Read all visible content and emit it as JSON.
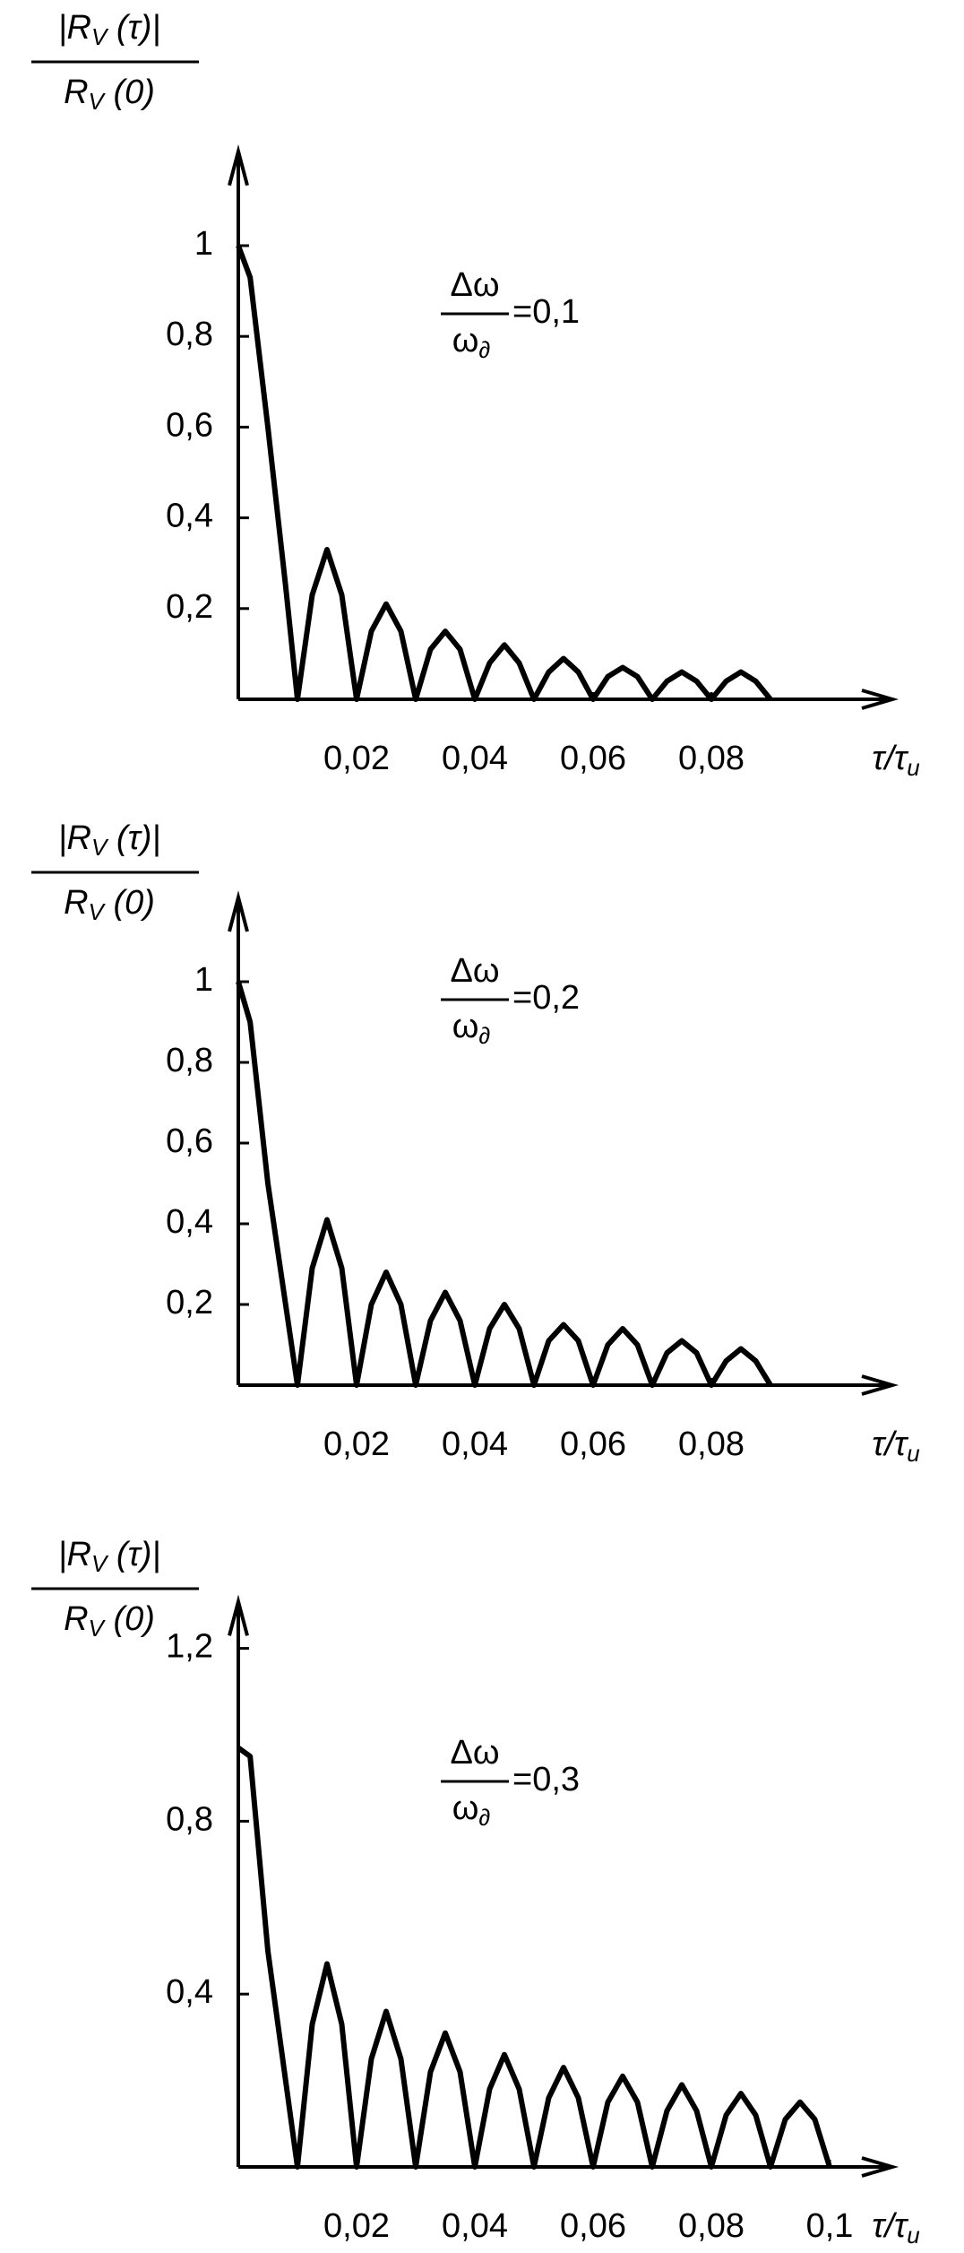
{
  "chart_data": [
    {
      "type": "line",
      "color": "#000000",
      "y_label": {
        "numerator": [
          "|R",
          "V",
          " (τ)|"
        ],
        "denominator": [
          "R",
          "V",
          " (0)"
        ]
      },
      "annotation": {
        "numerator": "Δω",
        "denominator": [
          "ω",
          "∂"
        ],
        "text": "=0,1"
      },
      "x_label": [
        "τ/τ",
        "u"
      ],
      "xlim": [
        0,
        0.11
      ],
      "ylim": [
        0,
        1.2
      ],
      "xticks": [
        {
          "value": 0.02,
          "label": "0,02"
        },
        {
          "value": 0.04,
          "label": "0,04"
        },
        {
          "value": 0.06,
          "label": "0,06"
        },
        {
          "value": 0.08,
          "label": "0,08"
        }
      ],
      "yticks": [
        {
          "value": 0.2,
          "label": "0,2"
        },
        {
          "value": 0.4,
          "label": "0,4"
        },
        {
          "value": 0.6,
          "label": "0,6"
        },
        {
          "value": 0.8,
          "label": "0,8"
        },
        1
      ],
      "x": [
        0,
        0.002,
        0.005,
        0.008,
        0.01,
        0.0125,
        0.015,
        0.0175,
        0.02,
        0.0225,
        0.025,
        0.0275,
        0.03,
        0.0325,
        0.035,
        0.0375,
        0.04,
        0.0425,
        0.045,
        0.0475,
        0.05,
        0.0525,
        0.055,
        0.0575,
        0.06,
        0.0625,
        0.065,
        0.0675,
        0.07,
        0.0725,
        0.075,
        0.0775,
        0.08,
        0.0825,
        0.085,
        0.0875,
        0.09
      ],
      "values": [
        1,
        0.93,
        0.6,
        0.25,
        0,
        0.23,
        0.33,
        0.23,
        0,
        0.15,
        0.21,
        0.15,
        0,
        0.11,
        0.15,
        0.11,
        0,
        0.08,
        0.12,
        0.08,
        0,
        0.06,
        0.09,
        0.06,
        0,
        0.05,
        0.07,
        0.05,
        0,
        0.04,
        0.06,
        0.04,
        0,
        0.04,
        0.06,
        0.04,
        0
      ]
    },
    {
      "type": "line",
      "color": "#000000",
      "y_label": {
        "numerator": [
          "|R",
          "V",
          " (τ)|"
        ],
        "denominator": [
          "R",
          "V",
          " (0)"
        ]
      },
      "annotation": {
        "numerator": "Δω",
        "denominator": [
          "ω",
          "∂"
        ],
        "text": "=0,2"
      },
      "x_label": [
        "τ/τ",
        "u"
      ],
      "xlim": [
        0,
        0.11
      ],
      "ylim": [
        0,
        1.2
      ],
      "xticks": [
        {
          "value": 0.02,
          "label": "0,02"
        },
        {
          "value": 0.04,
          "label": "0,04"
        },
        {
          "value": 0.06,
          "label": "0,06"
        },
        {
          "value": 0.08,
          "label": "0,08"
        }
      ],
      "yticks": [
        {
          "value": 0.2,
          "label": "0,2"
        },
        {
          "value": 0.4,
          "label": "0,4"
        },
        {
          "value": 0.6,
          "label": "0,6"
        },
        {
          "value": 0.8,
          "label": "0,8"
        },
        1
      ],
      "x": [
        0,
        0.002,
        0.005,
        0.008,
        0.01,
        0.0125,
        0.015,
        0.0175,
        0.02,
        0.0225,
        0.025,
        0.0275,
        0.03,
        0.0325,
        0.035,
        0.0375,
        0.04,
        0.0425,
        0.045,
        0.0475,
        0.05,
        0.0525,
        0.055,
        0.0575,
        0.06,
        0.0625,
        0.065,
        0.0675,
        0.07,
        0.0725,
        0.075,
        0.0775,
        0.08,
        0.0825,
        0.085,
        0.0875,
        0.09
      ],
      "values": [
        1,
        0.9,
        0.5,
        0.2,
        0,
        0.29,
        0.41,
        0.29,
        0,
        0.2,
        0.28,
        0.2,
        0,
        0.16,
        0.23,
        0.16,
        0,
        0.14,
        0.2,
        0.14,
        0,
        0.11,
        0.15,
        0.11,
        0,
        0.1,
        0.14,
        0.1,
        0,
        0.08,
        0.11,
        0.08,
        0,
        0.06,
        0.09,
        0.06,
        0
      ]
    },
    {
      "type": "line",
      "color": "#000000",
      "y_label": {
        "numerator": [
          "|R",
          "V",
          " (τ)|"
        ],
        "denominator": [
          "R",
          "V",
          " (0)"
        ]
      },
      "annotation": {
        "numerator": "Δω",
        "denominator": [
          "ω",
          "∂"
        ],
        "text": "=0,3"
      },
      "x_label": [
        "τ/τ",
        "u"
      ],
      "xlim": [
        0,
        0.11
      ],
      "ylim": [
        0,
        1.3
      ],
      "xticks": [
        {
          "value": 0.02,
          "label": "0,02"
        },
        {
          "value": 0.04,
          "label": "0,04"
        },
        {
          "value": 0.06,
          "label": "0,06"
        },
        {
          "value": 0.08,
          "label": "0,08"
        },
        {
          "value": 0.1,
          "label": "0,1"
        }
      ],
      "yticks": [
        {
          "value": 0.4,
          "label": "0,4"
        },
        {
          "value": 0.8,
          "label": "0,8"
        },
        {
          "value": 1.2,
          "label": "1,2"
        }
      ],
      "x": [
        0,
        0.002,
        0.005,
        0.008,
        0.01,
        0.0125,
        0.015,
        0.0175,
        0.02,
        0.0225,
        0.025,
        0.0275,
        0.03,
        0.0325,
        0.035,
        0.0375,
        0.04,
        0.0425,
        0.045,
        0.0475,
        0.05,
        0.0525,
        0.055,
        0.0575,
        0.06,
        0.0625,
        0.065,
        0.0675,
        0.07,
        0.0725,
        0.075,
        0.0775,
        0.08,
        0.0825,
        0.085,
        0.0875,
        0.09,
        0.0925,
        0.095,
        0.0975,
        0.1
      ],
      "values": [
        0.97,
        0.95,
        0.5,
        0.2,
        0,
        0.33,
        0.47,
        0.33,
        0,
        0.25,
        0.36,
        0.25,
        0,
        0.22,
        0.31,
        0.22,
        0,
        0.18,
        0.26,
        0.18,
        0,
        0.16,
        0.23,
        0.16,
        0,
        0.15,
        0.21,
        0.15,
        0,
        0.13,
        0.19,
        0.13,
        0,
        0.12,
        0.17,
        0.12,
        0,
        0.11,
        0.15,
        0.11,
        0
      ]
    }
  ]
}
